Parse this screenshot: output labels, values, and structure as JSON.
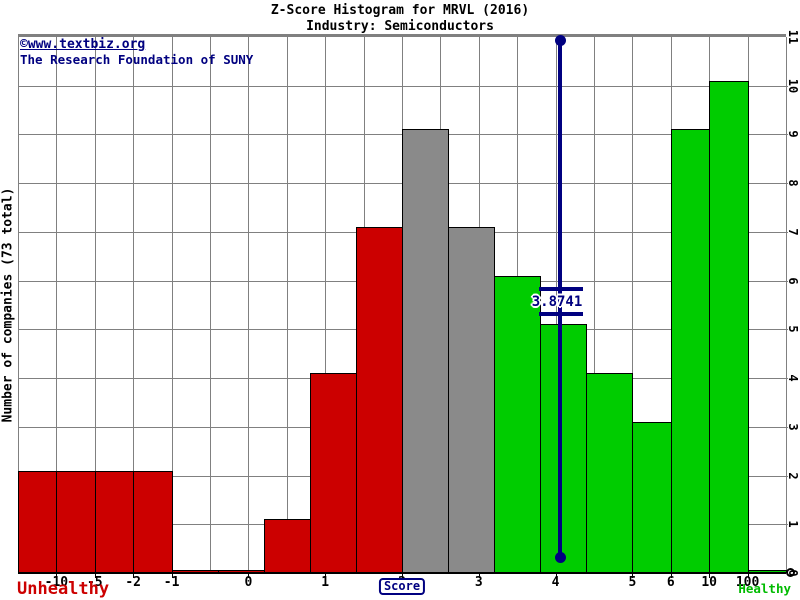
{
  "header": {
    "title": "Z-Score Histogram for MRVL (2016)",
    "subtitle": "Industry: Semiconductors"
  },
  "watermark": {
    "line1": "©www.textbiz.org",
    "line2": "The Research Foundation of SUNY"
  },
  "chart_data": {
    "type": "bar",
    "title": "Z-Score Histogram for MRVL (2016)",
    "subtitle": "Industry: Semiconductors",
    "company": "MRVL",
    "year": "2016",
    "industry": "Semiconductors",
    "xlabel": "Score",
    "ylabel": "Number of companies (73 total)",
    "total_companies": 73,
    "ylim": [
      0,
      11
    ],
    "grid": true,
    "y_ticks": [
      "0",
      "1",
      "2",
      "3",
      "4",
      "5",
      "6",
      "7",
      "8",
      "9",
      "10",
      "11"
    ],
    "x_ticks": [
      "-10",
      "-5",
      "-2",
      "-1",
      "0",
      "1",
      "2",
      "3",
      "4",
      "5",
      "6",
      "10",
      "100"
    ],
    "zone_labels": {
      "left": "Unhealthy",
      "right": "Healthy"
    },
    "zone_colors": {
      "unhealthy": "#cc0000",
      "neutral": "#8a8a8a",
      "healthy": "#00cc00"
    },
    "marker": {
      "label": "3.8741",
      "value": 3.8741,
      "color": "#000080"
    },
    "bins": [
      {
        "from": "-inf",
        "to": "-10",
        "count": 2,
        "zone": "unhealthy"
      },
      {
        "from": "-10",
        "to": "-5",
        "count": 2,
        "zone": "unhealthy"
      },
      {
        "from": "-5",
        "to": "-2",
        "count": 2,
        "zone": "unhealthy"
      },
      {
        "from": "-2",
        "to": "-1",
        "count": 2,
        "zone": "unhealthy"
      },
      {
        "from": "-1",
        "to": "-0.4",
        "count": 0,
        "zone": "unhealthy"
      },
      {
        "from": "-0.4",
        "to": "0.2",
        "count": 0,
        "zone": "unhealthy"
      },
      {
        "from": "0.2",
        "to": "0.8",
        "count": 1,
        "zone": "unhealthy"
      },
      {
        "from": "0.8",
        "to": "1.4",
        "count": 4,
        "zone": "unhealthy"
      },
      {
        "from": "1.4",
        "to": "2",
        "count": 7,
        "zone": "unhealthy"
      },
      {
        "from": "2",
        "to": "2.6",
        "count": 9,
        "zone": "neutral"
      },
      {
        "from": "2.6",
        "to": "3.2",
        "count": 7,
        "zone": "neutral"
      },
      {
        "from": "3.2",
        "to": "3.8",
        "count": 6,
        "zone": "healthy"
      },
      {
        "from": "3.8",
        "to": "4.4",
        "count": 5,
        "zone": "healthy"
      },
      {
        "from": "4.4",
        "to": "5",
        "count": 4,
        "zone": "healthy"
      },
      {
        "from": "5",
        "to": "6",
        "count": 3,
        "zone": "healthy"
      },
      {
        "from": "6",
        "to": "10",
        "count": 9,
        "zone": "healthy"
      },
      {
        "from": "10",
        "to": "100",
        "count": 10,
        "zone": "healthy"
      },
      {
        "from": "100",
        "to": "inf",
        "count": 0,
        "zone": "healthy"
      }
    ]
  }
}
